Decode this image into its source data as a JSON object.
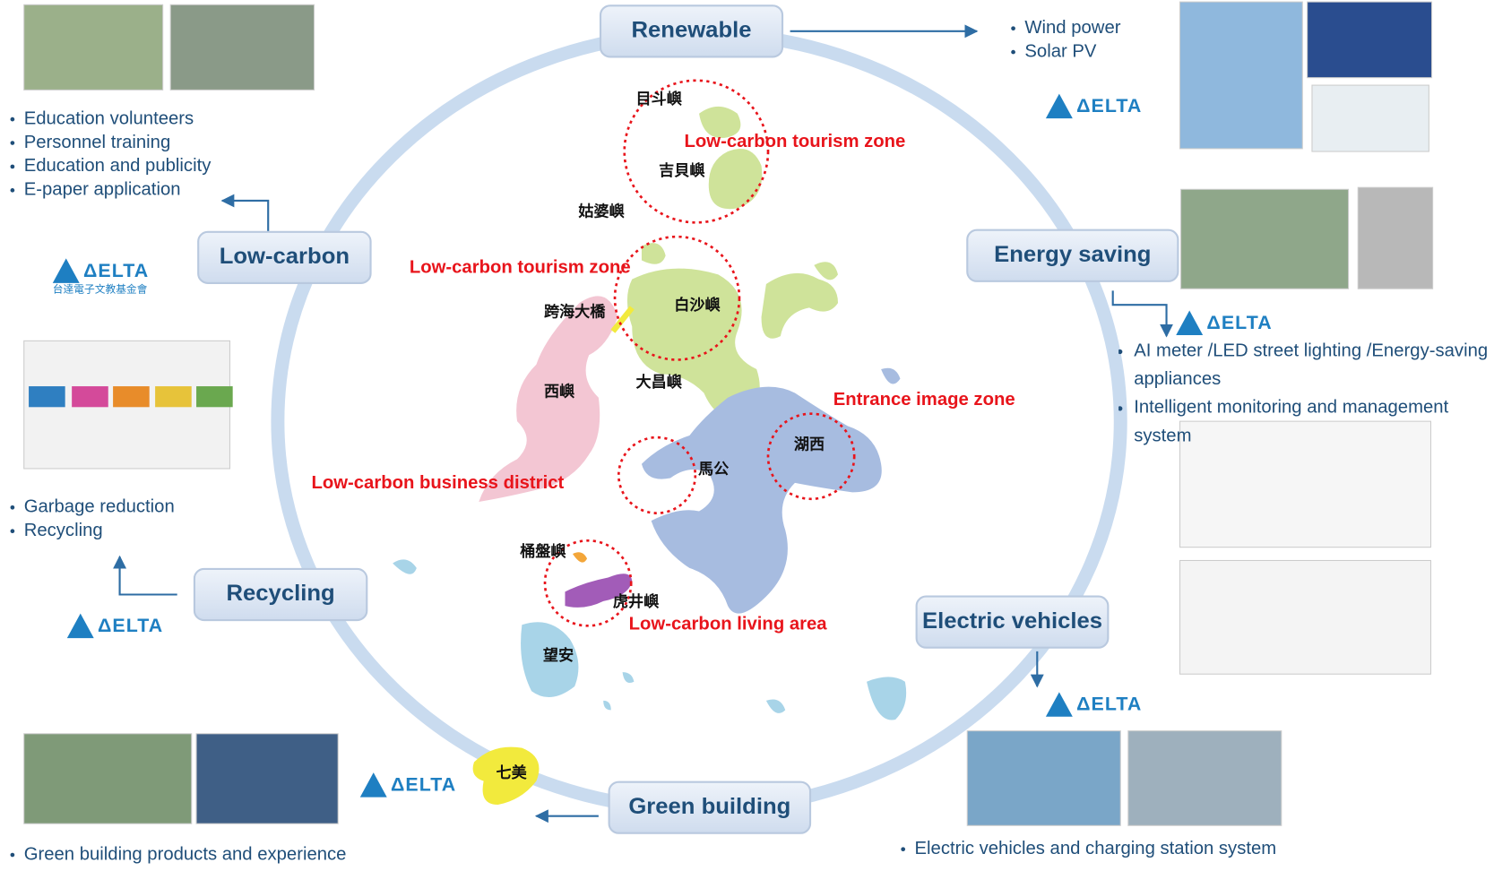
{
  "nodes": [
    {
      "label": "Renewable",
      "bullets": [
        "Wind power",
        "Solar PV"
      ]
    },
    {
      "label": "Low-carbon",
      "bullets": [
        "Education volunteers",
        "Personnel training",
        "Education and publicity",
        "E-paper application"
      ]
    },
    {
      "label": "Energy saving",
      "bullets": [
        "AI meter /LED street lighting /Energy-saving appliances",
        "Intelligent monitoring and management system"
      ]
    },
    {
      "label": "Recycling",
      "bullets": [
        "Garbage reduction",
        "Recycling"
      ]
    },
    {
      "label": "Electric vehicles",
      "bullets": [
        "Electric vehicles and charging station system"
      ]
    },
    {
      "label": "Green building",
      "bullets": [
        "Green building products and experience"
      ]
    }
  ],
  "map_labels": [
    "目斗嶼",
    "吉貝嶼",
    "姑婆嶼",
    "跨海大橋",
    "白沙嶼",
    "西嶼",
    "大昌嶼",
    "湖西",
    "馬公",
    "桶盤嶼",
    "虎井嶼",
    "望安",
    "七美"
  ],
  "zones": [
    "Low-carbon tourism zone",
    "Low-carbon tourism zone",
    "Entrance image zone",
    "Low-carbon business district",
    "Low-carbon living area"
  ],
  "brand": "ΔELTA",
  "foundation": "台達電子文教基金會"
}
